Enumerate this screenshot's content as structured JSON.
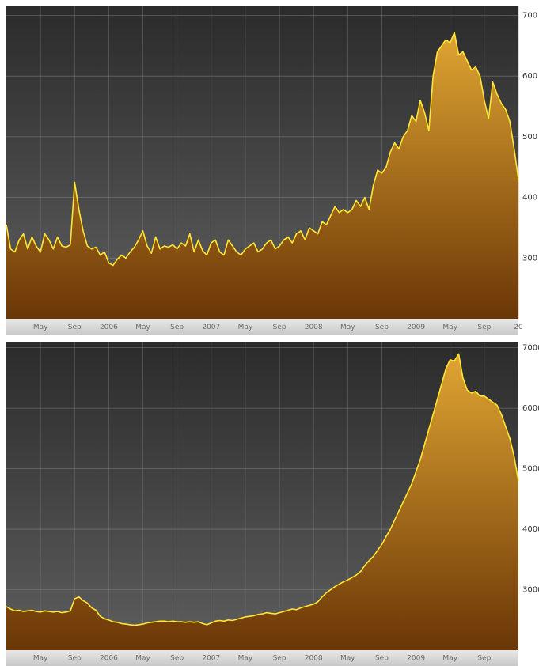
{
  "chart_data": [
    {
      "type": "area",
      "color": "#ffe533",
      "grid": true,
      "categories": [
        null,
        null,
        null,
        null,
        null,
        null,
        null,
        null,
        "May",
        null,
        null,
        null,
        null,
        null,
        null,
        null,
        "Sep",
        null,
        null,
        null,
        null,
        null,
        null,
        null,
        "2006",
        null,
        null,
        null,
        null,
        null,
        null,
        null,
        "May",
        null,
        null,
        null,
        null,
        null,
        null,
        null,
        "Sep",
        null,
        null,
        null,
        null,
        null,
        null,
        null,
        "2007",
        null,
        null,
        null,
        null,
        null,
        null,
        null,
        "May",
        null,
        null,
        null,
        null,
        null,
        null,
        null,
        "Sep",
        null,
        null,
        null,
        null,
        null,
        null,
        null,
        "2008",
        null,
        null,
        null,
        null,
        null,
        null,
        null,
        "May",
        null,
        null,
        null,
        null,
        null,
        null,
        null,
        "Sep",
        null,
        null,
        null,
        null,
        null,
        null,
        null,
        "2009",
        null,
        null,
        null,
        null,
        null,
        null,
        null,
        "May",
        null,
        null,
        null,
        null,
        null,
        null,
        null,
        "Sep",
        null,
        null,
        null,
        null,
        null,
        null,
        null,
        "20"
      ],
      "values": [
        355,
        315,
        310,
        330,
        340,
        315,
        335,
        320,
        310,
        340,
        330,
        315,
        335,
        320,
        318,
        322,
        425,
        380,
        345,
        320,
        315,
        318,
        305,
        310,
        292,
        288,
        298,
        305,
        300,
        310,
        318,
        330,
        345,
        320,
        308,
        335,
        315,
        320,
        318,
        322,
        315,
        325,
        320,
        340,
        310,
        330,
        312,
        305,
        325,
        330,
        310,
        305,
        330,
        320,
        310,
        305,
        315,
        320,
        325,
        310,
        315,
        325,
        330,
        315,
        320,
        330,
        335,
        325,
        340,
        345,
        330,
        350,
        345,
        340,
        360,
        355,
        370,
        385,
        375,
        380,
        375,
        380,
        395,
        385,
        400,
        380,
        420,
        445,
        440,
        450,
        475,
        490,
        480,
        500,
        510,
        535,
        525,
        560,
        540,
        510,
        600,
        640,
        650,
        660,
        655,
        672,
        635,
        640,
        625,
        610,
        615,
        600,
        560,
        530,
        590,
        570,
        555,
        545,
        525,
        480,
        430
      ],
      "ylim": [
        200,
        715
      ],
      "yticks": [
        300,
        400,
        500,
        600,
        700
      ]
    },
    {
      "type": "area",
      "color": "#ffe533",
      "grid": true,
      "categories": [
        null,
        null,
        null,
        null,
        null,
        null,
        null,
        null,
        "May",
        null,
        null,
        null,
        null,
        null,
        null,
        null,
        "Sep",
        null,
        null,
        null,
        null,
        null,
        null,
        null,
        "2006",
        null,
        null,
        null,
        null,
        null,
        null,
        null,
        "May",
        null,
        null,
        null,
        null,
        null,
        null,
        null,
        "Sep",
        null,
        null,
        null,
        null,
        null,
        null,
        null,
        "2007",
        null,
        null,
        null,
        null,
        null,
        null,
        null,
        "May",
        null,
        null,
        null,
        null,
        null,
        null,
        null,
        "Sep",
        null,
        null,
        null,
        null,
        null,
        null,
        null,
        "2008",
        null,
        null,
        null,
        null,
        null,
        null,
        null,
        "May",
        null,
        null,
        null,
        null,
        null,
        null,
        null,
        "Sep",
        null,
        null,
        null,
        null,
        null,
        null,
        null,
        "2009",
        null,
        null,
        null,
        null,
        null,
        null,
        null,
        "May",
        null,
        null,
        null,
        null,
        null,
        null,
        null,
        "Sep",
        null,
        null,
        null,
        null,
        null,
        null,
        null,
        null
      ],
      "values": [
        2720,
        2680,
        2650,
        2660,
        2640,
        2650,
        2660,
        2640,
        2630,
        2650,
        2640,
        2630,
        2640,
        2620,
        2630,
        2650,
        2850,
        2880,
        2820,
        2780,
        2700,
        2660,
        2560,
        2520,
        2500,
        2470,
        2460,
        2440,
        2430,
        2420,
        2410,
        2420,
        2430,
        2450,
        2460,
        2470,
        2480,
        2480,
        2470,
        2480,
        2470,
        2470,
        2460,
        2470,
        2460,
        2470,
        2440,
        2420,
        2450,
        2480,
        2490,
        2480,
        2500,
        2490,
        2510,
        2530,
        2550,
        2560,
        2570,
        2590,
        2600,
        2620,
        2610,
        2600,
        2620,
        2640,
        2660,
        2680,
        2670,
        2700,
        2720,
        2740,
        2760,
        2800,
        2880,
        2950,
        3000,
        3050,
        3090,
        3130,
        3160,
        3200,
        3240,
        3300,
        3400,
        3480,
        3550,
        3650,
        3750,
        3880,
        4000,
        4150,
        4300,
        4450,
        4600,
        4750,
        4950,
        5150,
        5400,
        5650,
        5900,
        6150,
        6400,
        6650,
        6800,
        6780,
        6900,
        6500,
        6300,
        6250,
        6280,
        6200,
        6200,
        6150,
        6100,
        6050,
        5900,
        5700,
        5500,
        5200,
        4800
      ],
      "ylim": [
        2000,
        7100
      ],
      "yticks": [
        3000,
        4000,
        5000,
        6000,
        7000
      ]
    }
  ]
}
